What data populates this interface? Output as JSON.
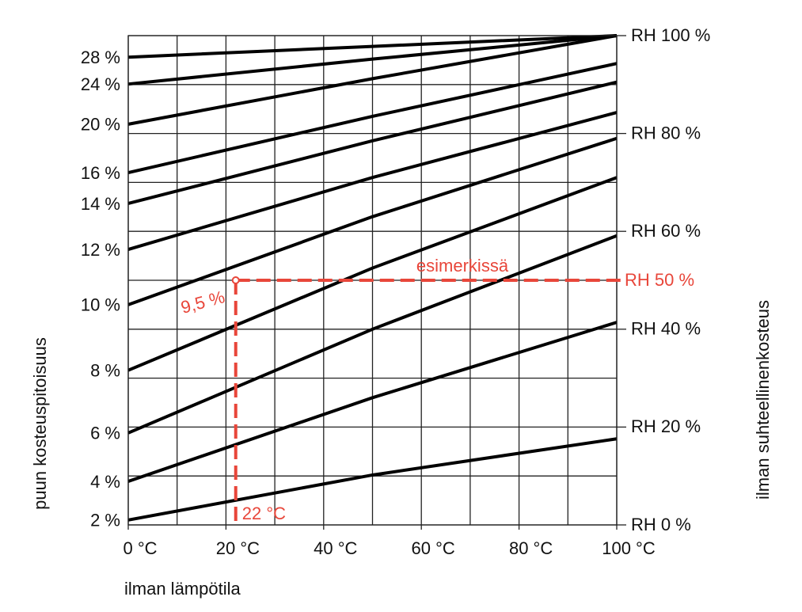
{
  "chart_data": {
    "type": "line",
    "x_label": "ilman lämpötila",
    "y_label": "puun kosteuspitoisuus",
    "y2_label": "ilman suhteellinenkosteus",
    "xlim": [
      0,
      100
    ],
    "ylim": [
      0,
      100
    ],
    "xgrid": [
      0,
      10,
      20,
      30,
      40,
      50,
      60,
      70,
      80,
      90,
      100
    ],
    "ygrid": [
      0,
      10,
      20,
      30,
      40,
      50,
      60,
      70,
      80,
      90,
      100
    ],
    "xticks": [
      {
        "value": 0,
        "label": "0 °C"
      },
      {
        "value": 20,
        "label": "20 °C"
      },
      {
        "value": 40,
        "label": "40 °C"
      },
      {
        "value": 60,
        "label": "60 °C"
      },
      {
        "value": 80,
        "label": "80 °C"
      },
      {
        "value": 100,
        "label": "100 °C"
      }
    ],
    "yticks": [
      {
        "value": 0,
        "label": "RH 0 %"
      },
      {
        "value": 20,
        "label": "RH 20 %"
      },
      {
        "value": 40,
        "label": "RH 40 %"
      },
      {
        "value": 60,
        "label": "RH 60 %"
      },
      {
        "value": 80,
        "label": "RH 80 %"
      },
      {
        "value": 100,
        "label": "RH 100 %"
      }
    ],
    "x": [
      0,
      50,
      100
    ],
    "series": [
      {
        "name": "2 %",
        "color": "#000000",
        "values": [
          1.0,
          10.2,
          17.6
        ]
      },
      {
        "name": "4 %",
        "color": "#000000",
        "values": [
          8.9,
          26.0,
          41.4
        ]
      },
      {
        "name": "6 %",
        "color": "#000000",
        "values": [
          18.8,
          40.0,
          59.1
        ]
      },
      {
        "name": "8 %",
        "color": "#000000",
        "values": [
          31.6,
          52.5,
          71.0
        ]
      },
      {
        "name": "10 %",
        "color": "#000000",
        "values": [
          45.0,
          63.0,
          79.0
        ]
      },
      {
        "name": "12 %",
        "color": "#000000",
        "values": [
          56.3,
          71.0,
          84.3
        ]
      },
      {
        "name": "14 %",
        "color": "#000000",
        "values": [
          65.7,
          78.5,
          90.5
        ]
      },
      {
        "name": "16 %",
        "color": "#000000",
        "values": [
          72.0,
          83.5,
          94.3
        ]
      },
      {
        "name": "20 %",
        "color": "#000000",
        "values": [
          81.9,
          91.2,
          100
        ]
      },
      {
        "name": "24 %",
        "color": "#000000",
        "values": [
          90.1,
          95.2,
          100
        ]
      },
      {
        "name": "28 %",
        "color": "#000000",
        "values": [
          95.6,
          97.8,
          100
        ]
      }
    ],
    "example": {
      "x": 22,
      "rh": 50,
      "color": "#e8463a",
      "moisture_label": "9,5 %",
      "temperature_label": "22 °C",
      "rh_label": "RH 50 %",
      "note": "esimerkissä"
    }
  }
}
